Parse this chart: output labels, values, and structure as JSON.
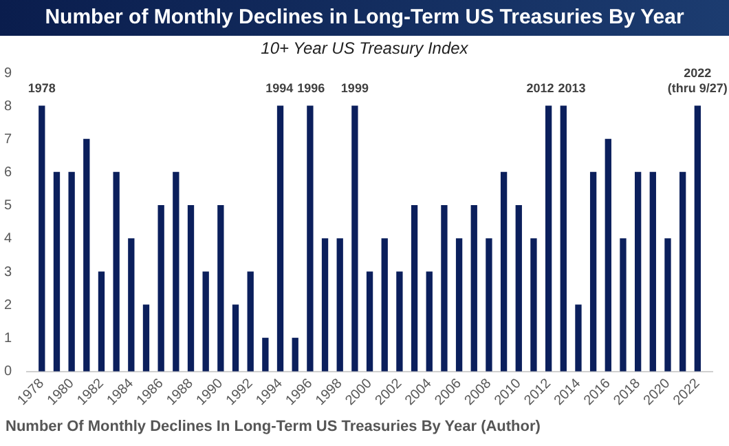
{
  "chart_data": {
    "type": "bar",
    "title": "Number of Monthly Declines in Long-Term US Treasuries By Year",
    "subtitle": "10+ Year US Treasury Index",
    "x": [
      1978,
      1979,
      1980,
      1981,
      1982,
      1983,
      1984,
      1985,
      1986,
      1987,
      1988,
      1989,
      1990,
      1991,
      1992,
      1993,
      1994,
      1995,
      1996,
      1997,
      1998,
      1999,
      2000,
      2001,
      2002,
      2003,
      2004,
      2005,
      2006,
      2007,
      2008,
      2009,
      2010,
      2011,
      2012,
      2013,
      2014,
      2015,
      2016,
      2017,
      2018,
      2019,
      2020,
      2021,
      2022
    ],
    "values": [
      8,
      6,
      6,
      7,
      3,
      6,
      4,
      2,
      5,
      6,
      5,
      3,
      5,
      2,
      3,
      1,
      8,
      1,
      8,
      4,
      4,
      8,
      3,
      4,
      3,
      5,
      3,
      5,
      4,
      5,
      4,
      6,
      5,
      4,
      8,
      8,
      2,
      6,
      7,
      4,
      6,
      6,
      4,
      6,
      8
    ],
    "color": "#0b1f5c",
    "xlim": [
      1977,
      2023
    ],
    "xticks": [
      1978,
      1980,
      1982,
      1984,
      1986,
      1988,
      1990,
      1992,
      1994,
      1996,
      1998,
      2000,
      2002,
      2004,
      2006,
      2008,
      2010,
      2012,
      2014,
      2016,
      2018,
      2020,
      2022
    ],
    "ylim": [
      0,
      9
    ],
    "yticks": [
      0,
      1,
      2,
      3,
      4,
      5,
      6,
      7,
      8,
      9
    ],
    "annotations": [
      {
        "text": "1978",
        "x": 1978,
        "y": 8
      },
      {
        "text": "1994",
        "x": 1994,
        "y": 8
      },
      {
        "text": "1996",
        "x": 1996,
        "y": 8
      },
      {
        "text": "1999",
        "x": 1999,
        "y": 8
      },
      {
        "text": "2012",
        "x": 2012,
        "y": 8
      },
      {
        "text": "2013",
        "x": 2013,
        "y": 8
      },
      {
        "text": "2022",
        "x": 2022,
        "y": 8
      },
      {
        "text": "(thru 9/27)",
        "x": 2022,
        "y": 8
      },
      "Number Of Monthly Declines In Long-Term US Treasuries By Year (Author)"
    ]
  }
}
